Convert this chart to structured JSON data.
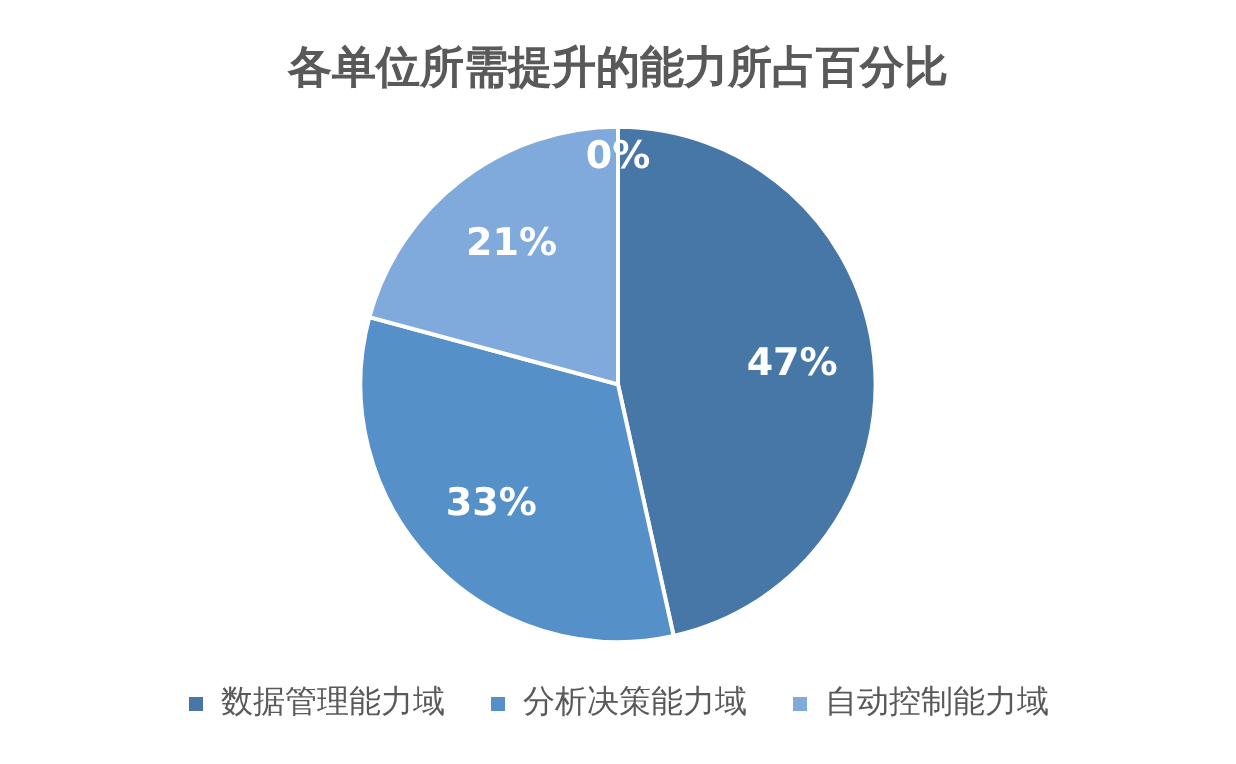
{
  "chart_data": {
    "type": "pie",
    "title": "各单位所需提升的能力所占百分比",
    "categories": [
      "数据管理能力域",
      "分析决策能力域",
      "自动控制能力域",
      null
    ],
    "values": [
      47,
      33,
      21,
      0
    ],
    "value_labels": [
      "47%",
      "33%",
      "21%",
      "0%"
    ],
    "colors": [
      "#4677a7",
      "#5690c8",
      "#80aadb",
      "#a9c4e6"
    ],
    "legend": "bottom"
  }
}
